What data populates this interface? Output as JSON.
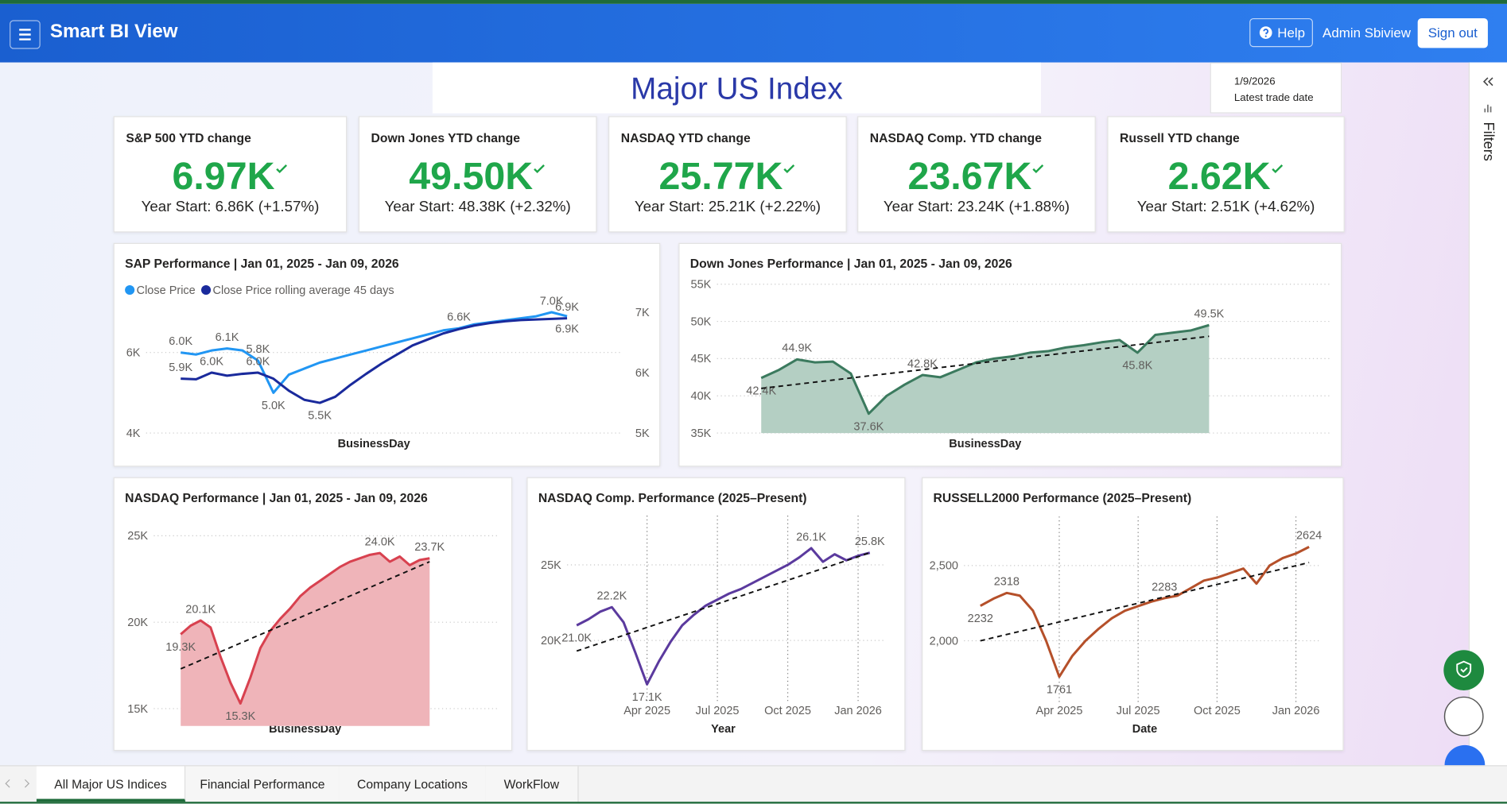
{
  "header": {
    "title": "Smart BI View",
    "help": "Help",
    "user": "Admin Sbiview",
    "sign_out": "Sign out"
  },
  "report": {
    "title": "Major US Index",
    "date": "1/9/2026",
    "date_label": "Latest trade date",
    "filters": "Filters"
  },
  "kpis": [
    {
      "title": "S&P 500 YTD change",
      "value": "6.97K",
      "subtitle": "Year Start: 6.86K (+1.57%)"
    },
    {
      "title": "Down Jones YTD change",
      "value": "49.50K",
      "subtitle": "Year Start: 48.38K (+2.32%)"
    },
    {
      "title": "NASDAQ YTD change",
      "value": "25.77K",
      "subtitle": "Year Start: 25.21K (+2.22%)"
    },
    {
      "title": "NASDAQ Comp. YTD change",
      "value": "23.67K",
      "subtitle": "Year Start: 23.24K (+1.88%)"
    },
    {
      "title": "Russell YTD change",
      "value": "2.62K",
      "subtitle": "Year Start: 2.51K (+4.62%)"
    }
  ],
  "tabs": [
    "All Major US Indices",
    "Financial Performance",
    "Company Locations",
    "WorkFlow"
  ],
  "chart_data": [
    {
      "type": "line",
      "title": "SAP Performance | Jan 01, 2025 - Jan 09, 2026",
      "x_label": "BusinessDay",
      "legend": true,
      "categories": [
        null,
        null,
        null,
        null,
        null,
        null,
        null,
        null,
        null,
        null,
        null,
        null,
        null,
        null,
        null,
        null,
        null,
        null,
        null,
        null,
        null,
        null,
        null,
        null,
        null,
        null
      ],
      "series": [
        {
          "name": "Close Price",
          "color": "#2196f3",
          "values": [
            6000,
            5950,
            6050,
            6100,
            6050,
            5800,
            5000,
            5450,
            5600,
            5750,
            5850,
            5950,
            6050,
            6150,
            6250,
            6350,
            6450,
            6550,
            6600,
            6700,
            6750,
            6800,
            6850,
            6900,
            7000,
            6900
          ],
          "value_labels": [
            "6.0K",
            null,
            null,
            "6.1K",
            null,
            "5.8K",
            "5.0K",
            null,
            null,
            null,
            null,
            null,
            null,
            null,
            null,
            null,
            null,
            null,
            "6.6K",
            null,
            null,
            null,
            null,
            null,
            "7.0K",
            "6.9K"
          ]
        },
        {
          "name": "Close Price rolling average 45 days",
          "color": "#1a2a9c",
          "axis": "y2",
          "values": [
            5900,
            5890,
            6000,
            5950,
            5980,
            6000,
            5900,
            5700,
            5550,
            5500,
            5600,
            5800,
            5980,
            6150,
            6300,
            6450,
            6550,
            6650,
            6720,
            6780,
            6820,
            6850,
            6870,
            6880,
            6890,
            6900
          ],
          "value_labels": [
            "5.9K",
            null,
            "6.0K",
            null,
            null,
            "6.0K",
            null,
            null,
            null,
            "5.5K",
            null,
            null,
            null,
            null,
            null,
            null,
            null,
            null,
            null,
            null,
            null,
            null,
            null,
            null,
            null,
            "6.9K"
          ]
        }
      ],
      "ylim": [
        4000,
        7600
      ],
      "yticks": [
        {
          "value": 4000,
          "label": "4K"
        },
        {
          "value": 6000,
          "label": "6K"
        }
      ],
      "y2lim": [
        5000,
        7400
      ],
      "y2ticks": [
        {
          "value": 5000,
          "label": "5K"
        },
        {
          "value": 6000,
          "label": "6K"
        },
        {
          "value": 7000,
          "label": "7K"
        }
      ],
      "grid": true
    },
    {
      "type": "line",
      "title": "Down Jones Performance | Jan 01, 2025 - Jan 09, 2026",
      "x_label": "BusinessDay",
      "area": true,
      "area_color": "#b4cfc3",
      "categories": [
        null,
        null,
        null,
        null,
        null,
        null,
        null,
        null,
        null,
        null,
        null,
        null,
        null,
        null,
        null,
        null,
        null,
        null,
        null,
        null,
        null,
        null,
        null,
        null,
        null,
        null
      ],
      "series": [
        {
          "color": "#3b7a5e",
          "values": [
            42400,
            43500,
            44900,
            44500,
            44600,
            43000,
            37600,
            40000,
            41500,
            42800,
            42500,
            43500,
            44500,
            45000,
            45300,
            45800,
            46000,
            46500,
            46800,
            47200,
            47500,
            45800,
            48200,
            48500,
            48800,
            49500
          ],
          "value_labels": [
            "42.4K",
            null,
            "44.9K",
            null,
            null,
            null,
            "37.6K",
            null,
            null,
            "42.8K",
            null,
            null,
            null,
            null,
            null,
            null,
            null,
            null,
            null,
            null,
            null,
            "45.8K",
            null,
            null,
            null,
            "49.5K"
          ]
        }
      ],
      "trend_line": [
        41000,
        48000
      ],
      "ylim": [
        35000,
        55000
      ],
      "yticks": [
        {
          "value": 35000,
          "label": "35K"
        },
        {
          "value": 40000,
          "label": "40K"
        },
        {
          "value": 45000,
          "label": "45K"
        },
        {
          "value": 50000,
          "label": "50K"
        },
        {
          "value": 55000,
          "label": "55K"
        }
      ],
      "grid": true
    },
    {
      "type": "line",
      "title": "NASDAQ Performance | Jan 01, 2025 - Jan 09, 2026",
      "x_label": "BusinessDay",
      "area": true,
      "area_color": "#efb4b9",
      "categories": [
        null,
        null,
        null,
        null,
        null,
        null,
        null,
        null,
        null,
        null,
        null,
        null,
        null,
        null,
        null,
        null,
        null,
        null,
        null,
        null,
        null,
        null,
        null,
        null,
        null,
        null
      ],
      "series": [
        {
          "color": "#d8414f",
          "values": [
            19300,
            19800,
            20100,
            19700,
            18000,
            16500,
            15300,
            16800,
            18500,
            19500,
            20200,
            20800,
            21500,
            22000,
            22400,
            22800,
            23200,
            23500,
            23700,
            23900,
            24000,
            23500,
            23800,
            23300,
            23600,
            23700
          ],
          "value_labels": [
            "19.3K",
            null,
            "20.1K",
            null,
            null,
            null,
            "15.3K",
            null,
            null,
            null,
            null,
            null,
            null,
            null,
            null,
            null,
            null,
            null,
            null,
            null,
            "24.0K",
            null,
            null,
            null,
            null,
            "23.7K"
          ]
        }
      ],
      "trend_line": [
        17300,
        23500
      ],
      "ylim": [
        14000,
        26000
      ],
      "yticks": [
        {
          "value": 15000,
          "label": "15K"
        },
        {
          "value": 20000,
          "label": "20K"
        },
        {
          "value": 25000,
          "label": "25K"
        }
      ],
      "grid": true
    },
    {
      "type": "line",
      "title": "NASDAQ Comp. Performance (2025–Present)",
      "x_label": "Year",
      "categories": [
        null,
        null,
        null,
        null,
        null,
        null,
        "Apr 2025",
        null,
        null,
        null,
        null,
        null,
        "Jul 2025",
        null,
        null,
        null,
        null,
        null,
        "Oct 2025",
        null,
        null,
        null,
        null,
        null,
        "Jan 2026",
        null
      ],
      "series": [
        {
          "color": "#5b3a9e",
          "values": [
            21000,
            21400,
            21900,
            22200,
            21200,
            19200,
            17100,
            18600,
            19900,
            21000,
            21700,
            22300,
            22700,
            23100,
            23400,
            23800,
            24200,
            24600,
            25000,
            25500,
            26100,
            25200,
            25700,
            25300,
            25600,
            25800
          ],
          "value_labels": [
            "21.0K",
            null,
            null,
            "22.2K",
            null,
            null,
            "17.1K",
            null,
            null,
            null,
            null,
            null,
            null,
            null,
            null,
            null,
            null,
            null,
            null,
            null,
            "26.1K",
            null,
            null,
            null,
            null,
            "25.8K"
          ]
        }
      ],
      "trend_line": [
        19300,
        25800
      ],
      "ylim": [
        16000,
        28000
      ],
      "yticks": [
        {
          "value": 20000,
          "label": "20K"
        },
        {
          "value": 25000,
          "label": "25K"
        }
      ],
      "grid": true
    },
    {
      "type": "line",
      "title": "RUSSELL2000 Performance (2025–Present)",
      "x_label": "Date",
      "categories": [
        null,
        null,
        null,
        null,
        null,
        null,
        "Apr 2025",
        null,
        null,
        null,
        null,
        null,
        "Jul 2025",
        null,
        null,
        null,
        null,
        null,
        "Oct 2025",
        null,
        null,
        null,
        null,
        null,
        "Jan 2026",
        null
      ],
      "series": [
        {
          "color": "#b5502a",
          "values": [
            2232,
            2280,
            2318,
            2300,
            2200,
            2000,
            1761,
            1900,
            2000,
            2080,
            2150,
            2200,
            2230,
            2260,
            2283,
            2300,
            2350,
            2400,
            2420,
            2450,
            2480,
            2380,
            2500,
            2550,
            2580,
            2624
          ],
          "value_labels": [
            "2232",
            null,
            "2318",
            null,
            null,
            null,
            "1761",
            null,
            null,
            null,
            null,
            null,
            null,
            null,
            "2283",
            null,
            null,
            null,
            null,
            null,
            null,
            null,
            null,
            null,
            null,
            "2624"
          ]
        }
      ],
      "trend_line": [
        2000,
        2520
      ],
      "ylim": [
        1600,
        2800
      ],
      "yticks": [
        {
          "value": 2000,
          "label": "2,000"
        },
        {
          "value": 2500,
          "label": "2,500"
        }
      ],
      "grid": true
    }
  ]
}
